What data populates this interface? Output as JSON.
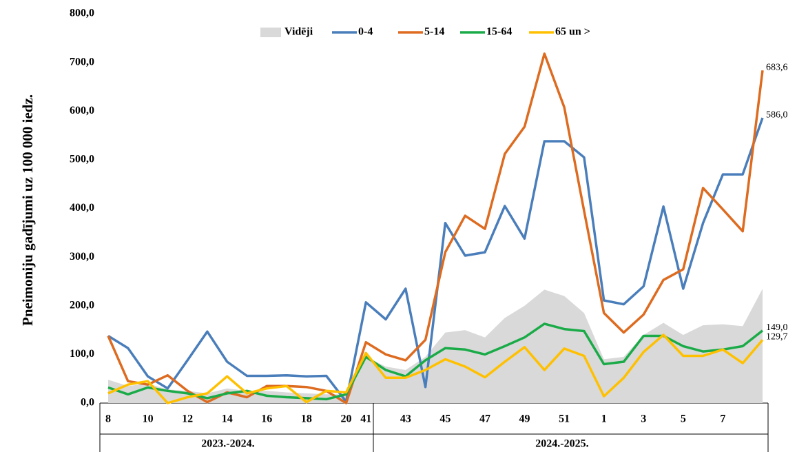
{
  "chart_data": {
    "type": "line",
    "ylabel": "Pneimoniju gadījumi uz 100 000 iedz.",
    "ylim": [
      0,
      800
    ],
    "yticks": [
      {
        "value": 0,
        "label": "0,0"
      },
      {
        "value": 100,
        "label": "100,0"
      },
      {
        "value": 200,
        "label": "200,0"
      },
      {
        "value": 300,
        "label": "300,0"
      },
      {
        "value": 400,
        "label": "400,0"
      },
      {
        "value": 500,
        "label": "500,0"
      },
      {
        "value": 600,
        "label": "600,0"
      },
      {
        "value": 700,
        "label": "700,0"
      },
      {
        "value": 800,
        "label": "800,0"
      }
    ],
    "category_groups": [
      {
        "label": "2023.-2024.",
        "categories": [
          "8",
          null,
          "10",
          null,
          "12",
          null,
          "14",
          null,
          "16",
          null,
          "18",
          null,
          "20"
        ]
      },
      {
        "label": "2024.-2025.",
        "categories": [
          "41",
          null,
          "43",
          null,
          "45",
          null,
          "47",
          null,
          "49",
          null,
          "51",
          null,
          "1",
          null,
          "3",
          null,
          "5",
          null,
          "7",
          null,
          null
        ]
      }
    ],
    "series": [
      {
        "name": "Vidēji",
        "kind": "area",
        "color": "#d9d9d9",
        "values": [
          48,
          35,
          40,
          28,
          25,
          20,
          30,
          25,
          25,
          22,
          20,
          18,
          18,
          95,
          75,
          68,
          95,
          145,
          150,
          135,
          175,
          200,
          233,
          220,
          185,
          90,
          95,
          140,
          165,
          140,
          160,
          162,
          158,
          235
        ]
      },
      {
        "name": "0-4",
        "color": "#4a7ebb",
        "values": [
          138,
          113,
          55,
          30,
          88,
          147,
          85,
          56,
          56,
          57,
          55,
          56,
          3,
          207,
          172,
          235,
          33,
          370,
          303,
          310,
          405,
          338,
          538,
          538,
          505,
          211,
          203,
          240,
          404,
          235,
          370,
          470,
          470,
          586.0
        ],
        "value_labels": [
          null,
          null,
          null,
          null,
          null,
          null,
          null,
          null,
          null,
          null,
          null,
          null,
          null,
          null,
          null,
          null,
          null,
          null,
          null,
          null,
          null,
          null,
          null,
          null,
          null,
          null,
          null,
          null,
          null,
          null,
          null,
          null,
          null,
          "586,0"
        ]
      },
      {
        "name": "5-14",
        "color": "#dd6b20",
        "values": [
          138,
          45,
          38,
          57,
          25,
          2,
          22,
          12,
          35,
          35,
          33,
          25,
          0,
          125,
          100,
          88,
          130,
          310,
          385,
          358,
          512,
          568,
          718,
          608,
          395,
          185,
          145,
          182,
          253,
          275,
          442,
          398,
          353,
          683.6
        ],
        "value_labels": [
          null,
          null,
          null,
          null,
          null,
          null,
          null,
          null,
          null,
          null,
          null,
          null,
          null,
          null,
          null,
          null,
          null,
          null,
          null,
          null,
          null,
          null,
          null,
          null,
          null,
          null,
          null,
          null,
          null,
          null,
          null,
          null,
          null,
          "683,6"
        ]
      },
      {
        "name": "15-64",
        "color": "#1aab48",
        "values": [
          32,
          18,
          32,
          25,
          20,
          10,
          20,
          25,
          15,
          12,
          10,
          8,
          18,
          95,
          68,
          55,
          88,
          113,
          110,
          100,
          117,
          135,
          163,
          152,
          148,
          80,
          85,
          138,
          138,
          117,
          106,
          110,
          117,
          149.0
        ],
        "value_labels": [
          null,
          null,
          null,
          null,
          null,
          null,
          null,
          null,
          null,
          null,
          null,
          null,
          null,
          null,
          null,
          null,
          null,
          null,
          null,
          null,
          null,
          null,
          null,
          null,
          null,
          null,
          null,
          null,
          null,
          null,
          null,
          null,
          null,
          "149,0"
        ]
      },
      {
        "name": "65 un >",
        "color": "#ffc000",
        "values": [
          20,
          38,
          45,
          0,
          12,
          20,
          55,
          20,
          30,
          35,
          2,
          25,
          22,
          103,
          52,
          52,
          68,
          90,
          75,
          53,
          85,
          115,
          68,
          112,
          97,
          14,
          52,
          105,
          140,
          97,
          97,
          110,
          82,
          129.7
        ],
        "value_labels": [
          null,
          null,
          null,
          null,
          null,
          null,
          null,
          null,
          null,
          null,
          null,
          null,
          null,
          null,
          null,
          null,
          null,
          null,
          null,
          null,
          null,
          null,
          null,
          null,
          null,
          null,
          null,
          null,
          null,
          null,
          null,
          null,
          null,
          "129,7"
        ]
      }
    ]
  }
}
